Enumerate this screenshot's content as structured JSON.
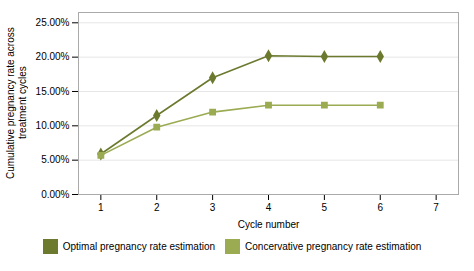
{
  "chart_data": {
    "type": "line",
    "xlabel": "Cycle number",
    "ylabel": "Cumulative pregnancy rate across\ntreatment cycles",
    "x": [
      1,
      2,
      3,
      4,
      5,
      6
    ],
    "series": [
      {
        "name": "Optimal pregnancy rate estimation",
        "color": "#6b7a2e",
        "marker": "diamond",
        "values": [
          0.059,
          0.115,
          0.17,
          0.202,
          0.201,
          0.201
        ]
      },
      {
        "name": "Concervative pregnancy rate estimation",
        "color": "#9aab52",
        "marker": "square",
        "values": [
          0.057,
          0.098,
          0.12,
          0.13,
          0.13,
          0.13
        ]
      }
    ],
    "xlim": [
      0.6,
      7.4
    ],
    "xticks": [
      1,
      2,
      3,
      4,
      5,
      6,
      7
    ],
    "ylim": [
      0.0,
      0.265
    ],
    "yticks": [
      {
        "value": 0.0,
        "label": "0.00%"
      },
      {
        "value": 0.05,
        "label": "5.00%"
      },
      {
        "value": 0.1,
        "label": "10.00%"
      },
      {
        "value": 0.15,
        "label": "15.00%"
      },
      {
        "value": 0.2,
        "label": "20.00%"
      },
      {
        "value": 0.25,
        "label": "25.00%"
      }
    ],
    "grid": "y",
    "legend": "bottom"
  }
}
